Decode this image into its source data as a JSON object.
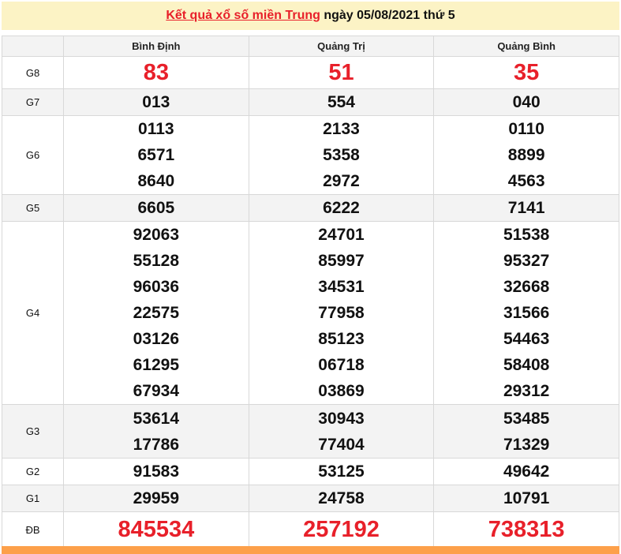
{
  "header": {
    "link": "Kết quả xổ số miền Trung",
    "rest": " ngày 05/08/2021 thứ 5"
  },
  "provinces": [
    "Bình Định",
    "Quảng Trị",
    "Quảng Bình"
  ],
  "rows": [
    {
      "label": "G8",
      "values": [
        [
          "83"
        ],
        [
          "51"
        ],
        [
          "35"
        ]
      ]
    },
    {
      "label": "G7",
      "values": [
        [
          "013"
        ],
        [
          "554"
        ],
        [
          "040"
        ]
      ]
    },
    {
      "label": "G6",
      "values": [
        [
          "0113",
          "6571",
          "8640"
        ],
        [
          "2133",
          "5358",
          "2972"
        ],
        [
          "0110",
          "8899",
          "4563"
        ]
      ]
    },
    {
      "label": "G5",
      "values": [
        [
          "6605"
        ],
        [
          "6222"
        ],
        [
          "7141"
        ]
      ]
    },
    {
      "label": "G4",
      "values": [
        [
          "92063",
          "55128",
          "96036",
          "22575",
          "03126",
          "61295",
          "67934"
        ],
        [
          "24701",
          "85997",
          "34531",
          "77958",
          "85123",
          "06718",
          "03869"
        ],
        [
          "51538",
          "95327",
          "32668",
          "31566",
          "54463",
          "58408",
          "29312"
        ]
      ]
    },
    {
      "label": "G3",
      "values": [
        [
          "53614",
          "17786"
        ],
        [
          "30943",
          "77404"
        ],
        [
          "53485",
          "71329"
        ]
      ]
    },
    {
      "label": "G2",
      "values": [
        [
          "91583"
        ],
        [
          "53125"
        ],
        [
          "49642"
        ]
      ]
    },
    {
      "label": "G1",
      "values": [
        [
          "29959"
        ],
        [
          "24758"
        ],
        [
          "10791"
        ]
      ]
    },
    {
      "label": "ĐB",
      "values": [
        [
          "845534"
        ],
        [
          "257192"
        ],
        [
          "738313"
        ]
      ]
    }
  ],
  "colors": {
    "accent": "#e8202a",
    "header_bg": "#fcf3c5",
    "footer_bar": "#fda04a"
  }
}
